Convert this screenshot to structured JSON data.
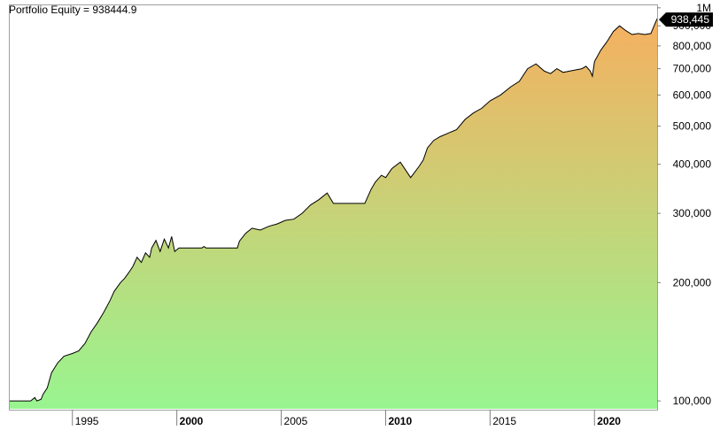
{
  "chart_data": {
    "type": "area",
    "title": "Portfolio Equity = 938444.9",
    "y_scale": "log",
    "ylim": [
      95000,
      1020000
    ],
    "xlim": [
      1992.0,
      2023.0
    ],
    "y_ticks": [
      {
        "value": 100000,
        "label": "100,000"
      },
      {
        "value": 200000,
        "label": "200,000"
      },
      {
        "value": 300000,
        "label": "300,000"
      },
      {
        "value": 400000,
        "label": "400,000"
      },
      {
        "value": 500000,
        "label": "500,000"
      },
      {
        "value": 600000,
        "label": "600,000"
      },
      {
        "value": 700000,
        "label": "700,000"
      },
      {
        "value": 800000,
        "label": "800,000"
      },
      {
        "value": 900000,
        "label": "900,000"
      },
      {
        "value": 1000000,
        "label": "1M"
      }
    ],
    "x_ticks": [
      {
        "value": 1995,
        "label": "1995",
        "bold": false
      },
      {
        "value": 2000,
        "label": "2000",
        "bold": true
      },
      {
        "value": 2005,
        "label": "2005",
        "bold": false
      },
      {
        "value": 2010,
        "label": "2010",
        "bold": true
      },
      {
        "value": 2015,
        "label": "2015",
        "bold": false
      },
      {
        "value": 2020,
        "label": "2020",
        "bold": true
      }
    ],
    "last_value_label": "938,445",
    "colors": {
      "fill_top": "#f5b060",
      "fill_bottom": "#98f590",
      "line": "#000000",
      "badge_bg": "#000000",
      "badge_text": "#ffffff"
    },
    "series": [
      {
        "x": [
          1992.0,
          1993.0,
          1993.2,
          1993.3,
          1993.5,
          1993.6,
          1993.8,
          1994.0,
          1994.3,
          1994.6,
          1995.0,
          1995.3,
          1995.6,
          1995.9,
          1996.2,
          1996.5,
          1996.8,
          1997.0,
          1997.3,
          1997.5,
          1997.7,
          1997.9,
          1998.1,
          1998.3,
          1998.5,
          1998.7,
          1998.8,
          1999.0,
          1999.2,
          1999.4,
          1999.6,
          1999.75,
          1999.9,
          2000.1,
          2000.3,
          2001.2,
          2001.3,
          2001.4,
          2002.0,
          2002.9,
          2003.0,
          2003.3,
          2003.6,
          2004.0,
          2004.4,
          2004.8,
          2005.2,
          2005.6,
          2006.0,
          2006.4,
          2006.8,
          2007.2,
          2007.5,
          2007.8,
          2008.0,
          2008.2,
          2009.0,
          2009.3,
          2009.5,
          2009.8,
          2010.0,
          2010.3,
          2010.7,
          2011.2,
          2011.6,
          2011.8,
          2012.0,
          2012.3,
          2012.6,
          2013.0,
          2013.4,
          2013.8,
          2014.2,
          2014.6,
          2015.0,
          2015.5,
          2016.0,
          2016.4,
          2016.8,
          2017.2,
          2017.6,
          2017.9,
          2018.2,
          2018.5,
          2018.8,
          2019.1,
          2019.4,
          2019.6,
          2019.8,
          2019.9,
          2020.0,
          2020.3,
          2020.6,
          2020.9,
          2021.2,
          2021.5,
          2021.8,
          2022.1,
          2022.4,
          2022.7,
          2023.0
        ],
        "y": [
          100000,
          100000,
          102000,
          100000,
          101000,
          104000,
          108000,
          118000,
          125000,
          130000,
          132000,
          134000,
          140000,
          150000,
          158000,
          168000,
          180000,
          190000,
          200000,
          205000,
          212000,
          220000,
          232000,
          225000,
          238000,
          232000,
          245000,
          256000,
          240000,
          258000,
          245000,
          262000,
          240000,
          245000,
          245000,
          245000,
          247000,
          245000,
          245000,
          245000,
          255000,
          267000,
          275000,
          272000,
          278000,
          282000,
          288000,
          290000,
          300000,
          315000,
          325000,
          338000,
          318000,
          318000,
          318000,
          318000,
          318000,
          345000,
          360000,
          375000,
          370000,
          390000,
          405000,
          370000,
          395000,
          410000,
          440000,
          460000,
          470000,
          480000,
          490000,
          520000,
          540000,
          555000,
          580000,
          600000,
          630000,
          650000,
          700000,
          720000,
          690000,
          680000,
          700000,
          685000,
          690000,
          695000,
          700000,
          710000,
          690000,
          670000,
          730000,
          780000,
          820000,
          870000,
          900000,
          875000,
          855000,
          860000,
          855000,
          860000,
          938444.9
        ]
      }
    ]
  }
}
